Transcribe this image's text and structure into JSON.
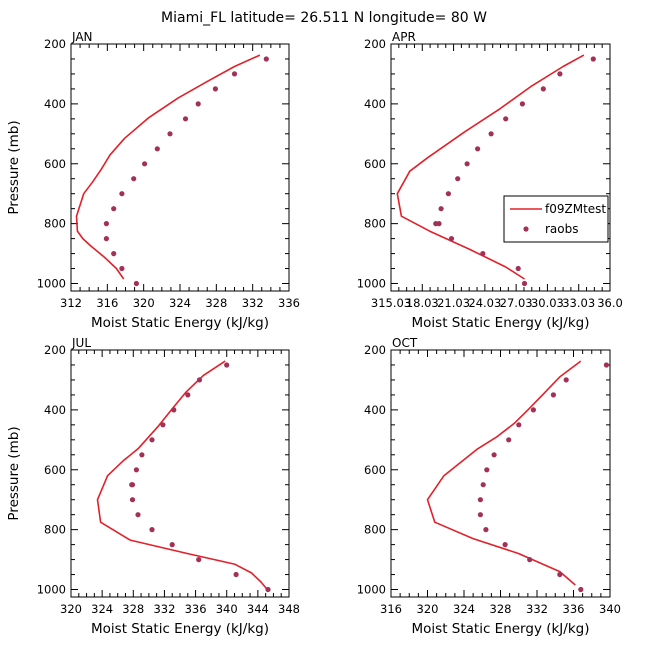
{
  "title": "Miami_FL  latitude= 26.511 N longitude= 80 W",
  "colors": {
    "model": "#e3202a",
    "obs": "#a23158",
    "axis": "#000000"
  },
  "legend": {
    "entries": [
      "f09ZMtest",
      "raobs"
    ],
    "panel": 1,
    "placement": "center-right"
  },
  "chart_data": [
    {
      "type": "line",
      "panel_label": "JAN",
      "xlabel": "Moist Static Energy (kJ/kg)",
      "ylabel": "Pressure (mb)",
      "xlim": [
        312,
        336
      ],
      "ylim": [
        200,
        1025
      ],
      "y_inverted": true,
      "xticks": [
        "312",
        "316",
        "320",
        "324",
        "328",
        "332",
        "336"
      ],
      "yticks": [
        "200",
        "400",
        "600",
        "800",
        "1000"
      ],
      "series": [
        {
          "name": "f09ZMtest",
          "kind": "line",
          "x": [
            332.8,
            330.0,
            327.0,
            323.8,
            320.6,
            317.9,
            316.3,
            315.3,
            314.4,
            313.4,
            312.6,
            312.7,
            313.3,
            314.2,
            315.6,
            317.0,
            317.8
          ],
          "y": [
            237,
            275,
            325,
            380,
            445,
            515,
            570,
            620,
            660,
            700,
            775,
            825,
            850,
            875,
            910,
            950,
            985
          ]
        },
        {
          "name": "raobs",
          "kind": "scatter",
          "x": [
            333.5,
            330.0,
            327.9,
            326.0,
            324.6,
            322.9,
            321.5,
            320.1,
            318.9,
            317.6,
            316.7,
            315.9,
            315.9,
            316.7,
            317.6,
            319.2
          ],
          "y": [
            250,
            300,
            350,
            400,
            450,
            500,
            550,
            600,
            650,
            700,
            750,
            800,
            850,
            900,
            950,
            1000
          ]
        }
      ]
    },
    {
      "type": "line",
      "panel_label": "APR",
      "xlabel": "Moist Static Energy (kJ/kg)",
      "ylabel": "",
      "xlim": [
        315.0,
        336.0
      ],
      "ylim": [
        200,
        1025
      ],
      "y_inverted": true,
      "xticks": [
        "315.0",
        "318.0",
        "321.0",
        "324.0",
        "327.0",
        "330.0",
        "333.0",
        "336.0"
      ],
      "xticks_printed": [
        "315.03",
        "18.03",
        "21.03",
        "24.03",
        "27.03",
        "30.03",
        "33.03",
        "36.0"
      ],
      "yticks": [
        "200",
        "400",
        "600",
        "800",
        "1000"
      ],
      "series": [
        {
          "name": "f09ZMtest",
          "kind": "line",
          "x": [
            333.5,
            331.5,
            328.5,
            325.5,
            322.0,
            318.5,
            316.8,
            315.6,
            316.0,
            318.7,
            322.5,
            326.0,
            327.8
          ],
          "y": [
            237,
            275,
            340,
            415,
            495,
            580,
            625,
            700,
            775,
            825,
            885,
            945,
            985
          ]
        },
        {
          "name": "raobs",
          "kind": "scatter",
          "x": [
            334.4,
            331.2,
            329.6,
            327.6,
            326.0,
            324.6,
            323.3,
            322.3,
            321.4,
            320.5,
            319.8,
            319.3,
            319.6,
            320.8,
            323.8,
            327.2,
            327.8
          ],
          "y": [
            250,
            300,
            350,
            400,
            450,
            500,
            550,
            600,
            650,
            700,
            750,
            800,
            800,
            850,
            900,
            950,
            1000
          ]
        }
      ]
    },
    {
      "type": "line",
      "panel_label": "JUL",
      "xlabel": "Moist Static Energy (kJ/kg)",
      "ylabel": "Pressure (mb)",
      "xlim": [
        320,
        348
      ],
      "ylim": [
        200,
        1025
      ],
      "y_inverted": true,
      "xticks": [
        "320",
        "324",
        "328",
        "332",
        "336",
        "340",
        "344",
        "348"
      ],
      "yticks": [
        "200",
        "400",
        "600",
        "800",
        "1000"
      ],
      "series": [
        {
          "name": "f09ZMtest",
          "kind": "line",
          "x": [
            339.8,
            337.0,
            334.8,
            333.2,
            331.2,
            328.6,
            326.7,
            324.7,
            323.4,
            323.8,
            327.6,
            335.0,
            341.0,
            343.2,
            344.4,
            345.2
          ],
          "y": [
            237,
            285,
            340,
            390,
            455,
            530,
            570,
            620,
            700,
            775,
            835,
            880,
            915,
            945,
            975,
            1000
          ]
        },
        {
          "name": "raobs",
          "kind": "scatter",
          "x": [
            340.0,
            336.5,
            335.0,
            333.2,
            331.8,
            330.4,
            329.1,
            328.4,
            327.9,
            327.8,
            327.9,
            328.6,
            330.4,
            333.0,
            336.4,
            341.2,
            345.3
          ],
          "y": [
            250,
            300,
            350,
            400,
            450,
            500,
            550,
            600,
            650,
            650,
            700,
            750,
            800,
            850,
            900,
            950,
            1000
          ]
        }
      ]
    },
    {
      "type": "line",
      "panel_label": "OCT",
      "xlabel": "Moist Static Energy (kJ/kg)",
      "ylabel": "",
      "xlim": [
        316,
        340
      ],
      "ylim": [
        200,
        1025
      ],
      "y_inverted": true,
      "xticks": [
        "316",
        "320",
        "324",
        "328",
        "332",
        "336",
        "340"
      ],
      "yticks": [
        "200",
        "400",
        "600",
        "800",
        "1000"
      ],
      "series": [
        {
          "name": "f09ZMtest",
          "kind": "line",
          "x": [
            336.8,
            334.5,
            332.6,
            331.0,
            329.5,
            327.6,
            325.5,
            321.8,
            320.0,
            320.8,
            325.0,
            330.0,
            334.5,
            336.2
          ],
          "y": [
            237,
            290,
            350,
            400,
            445,
            490,
            530,
            620,
            700,
            775,
            830,
            880,
            940,
            985
          ]
        },
        {
          "name": "raobs",
          "kind": "scatter",
          "x": [
            339.6,
            335.2,
            333.8,
            331.6,
            330.0,
            328.9,
            327.3,
            326.5,
            326.1,
            325.8,
            325.8,
            326.4,
            328.5,
            331.2,
            334.5,
            336.8
          ],
          "y": [
            250,
            300,
            350,
            400,
            450,
            500,
            550,
            600,
            650,
            700,
            750,
            800,
            850,
            900,
            950,
            1000
          ]
        }
      ]
    }
  ]
}
